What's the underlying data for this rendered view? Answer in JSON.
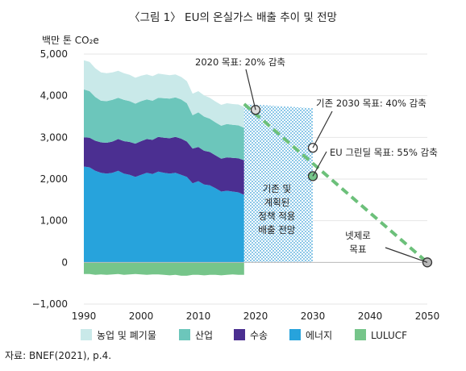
{
  "chart_data": {
    "type": "area",
    "title": "〈그림 1〉 EU의 온실가스 배출 추이 및 전망",
    "unit": "백만 톤 CO₂e",
    "source": "자료: BNEF(2021), p.4.",
    "xlim": [
      1990,
      2050
    ],
    "ylim": [
      -1000,
      5000
    ],
    "x_ticks": [
      1990,
      2000,
      2010,
      2020,
      2030,
      2040,
      2050
    ],
    "x_tick_labels": [
      "1990",
      "2000",
      "2010",
      "2020",
      "2030",
      "2040",
      "2050"
    ],
    "y_ticks": [
      -1000,
      0,
      1000,
      2000,
      3000,
      4000,
      5000
    ],
    "y_tick_labels": [
      "−1,000",
      "0",
      "1,000",
      "2,000",
      "3,000",
      "4,000",
      "5,000"
    ],
    "x": [
      1990,
      1991,
      1992,
      1993,
      1994,
      1995,
      1996,
      1997,
      1998,
      1999,
      2000,
      2001,
      2002,
      2003,
      2004,
      2005,
      2006,
      2007,
      2008,
      2009,
      2010,
      2011,
      2012,
      2013,
      2014,
      2015,
      2016,
      2017,
      2018
    ],
    "series": [
      {
        "name": "에너지",
        "color": "#27a3dc",
        "values": [
          2300,
          2280,
          2200,
          2150,
          2130,
          2150,
          2200,
          2130,
          2100,
          2050,
          2100,
          2150,
          2120,
          2180,
          2150,
          2130,
          2150,
          2100,
          2050,
          1900,
          1950,
          1870,
          1850,
          1780,
          1700,
          1720,
          1700,
          1680,
          1620
        ]
      },
      {
        "name": "수송",
        "color": "#4b2f91",
        "values": [
          700,
          710,
          720,
          730,
          740,
          750,
          760,
          780,
          790,
          800,
          810,
          810,
          820,
          830,
          840,
          850,
          860,
          870,
          850,
          830,
          820,
          810,
          800,
          790,
          790,
          800,
          810,
          820,
          830
        ]
      },
      {
        "name": "산업",
        "color": "#6cc6bb",
        "values": [
          1150,
          1120,
          1050,
          1000,
          1000,
          1000,
          990,
          990,
          980,
          960,
          960,
          950,
          940,
          940,
          950,
          950,
          950,
          940,
          920,
          800,
          830,
          820,
          800,
          790,
          790,
          800,
          790,
          790,
          780
        ]
      },
      {
        "name": "농업 및 폐기물",
        "color": "#c9e9e9",
        "values": [
          700,
          700,
          690,
          680,
          670,
          660,
          650,
          640,
          630,
          620,
          610,
          600,
          590,
          580,
          570,
          560,
          550,
          540,
          530,
          520,
          510,
          510,
          500,
          500,
          500,
          500,
          500,
          500,
          500
        ]
      },
      {
        "name": "LULUCF",
        "color": "#76c58a",
        "values": [
          -280,
          -280,
          -300,
          -290,
          -300,
          -290,
          -280,
          -300,
          -290,
          -280,
          -290,
          -300,
          -290,
          -290,
          -300,
          -310,
          -300,
          -320,
          -320,
          -300,
          -300,
          -310,
          -300,
          -300,
          -310,
          -300,
          -290,
          -300,
          -300
        ]
      }
    ],
    "projection": {
      "label": [
        "기존 및",
        "계획된",
        "정책 적용",
        "배출 전망"
      ],
      "x": [
        2018,
        2030
      ],
      "top": [
        3800,
        3700
      ],
      "bottom": [
        0,
        0
      ]
    },
    "target_path": {
      "color": "#6cc07a",
      "x": [
        2018,
        2050
      ],
      "y": [
        3800,
        0
      ]
    },
    "points": [
      {
        "x": 2020,
        "y": 3660,
        "label": "2020 목표: 20% 감축"
      },
      {
        "x": 2030,
        "y": 2750,
        "label": "기존 2030 목표: 40% 감축"
      },
      {
        "x": 2030,
        "y": 2070,
        "label": "EU 그린딜 목표: 55% 감축"
      },
      {
        "x": 2050,
        "y": 0,
        "label": "넷제로 목표"
      }
    ],
    "legend_order": [
      "농업 및 폐기물",
      "산업",
      "수송",
      "에너지",
      "LULUCF"
    ],
    "legend_placement": "bottom"
  },
  "labels": {
    "net_zero_line1": "넷제로",
    "net_zero_line2": "목표"
  }
}
